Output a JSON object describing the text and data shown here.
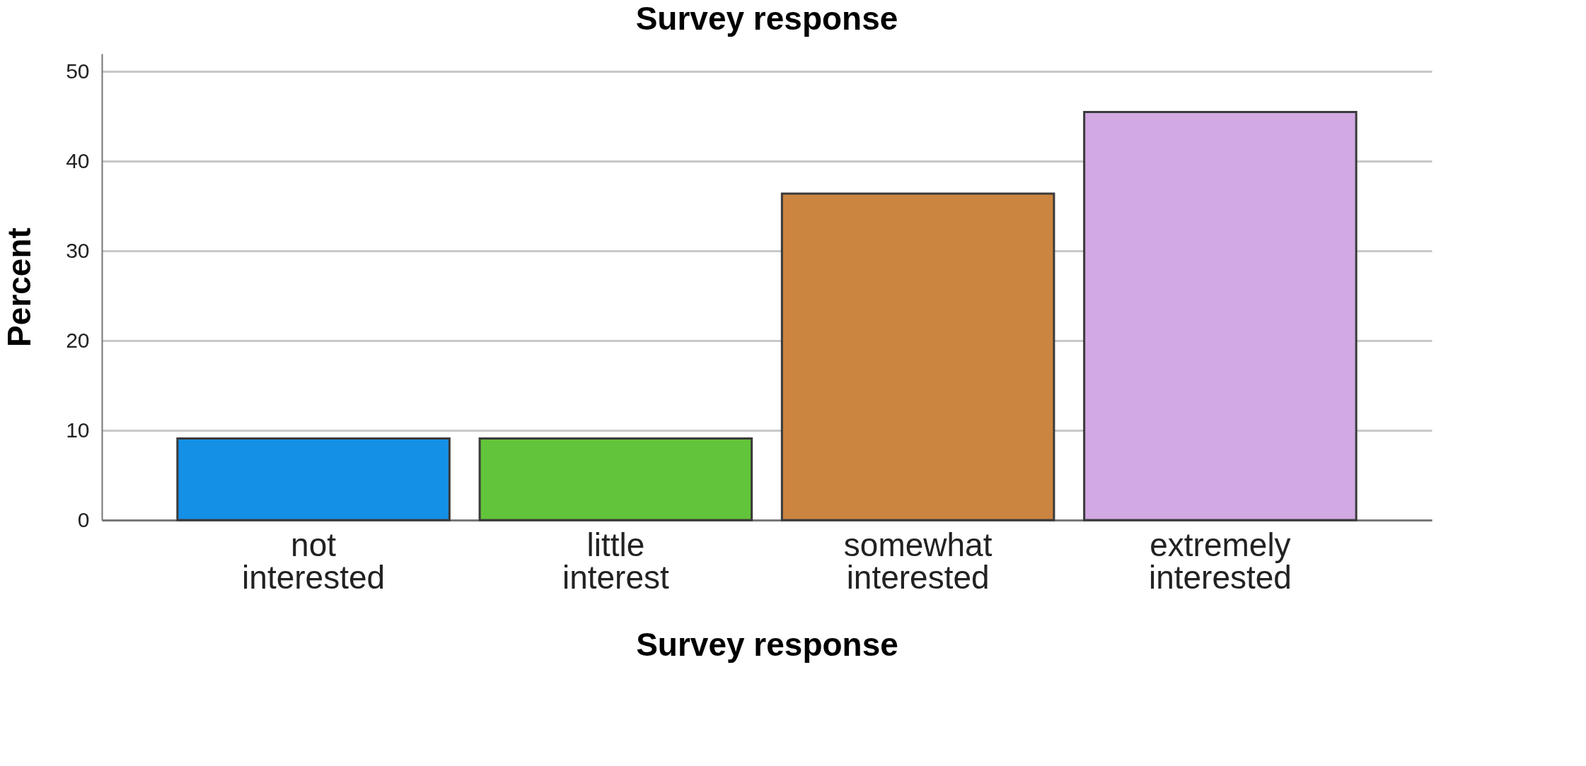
{
  "chart_data": {
    "type": "bar",
    "title": "Survey response",
    "xlabel": "Survey response",
    "ylabel": "Percent",
    "categories": [
      "not interested",
      "little interest",
      "somewhat interested",
      "extremely interested"
    ],
    "values": [
      9.1,
      9.1,
      36.4,
      45.5
    ],
    "colors": [
      "#1490e6",
      "#62c43a",
      "#cc8540",
      "#d2a9e3"
    ],
    "ylim": [
      0,
      52
    ],
    "yticks": [
      0,
      10,
      20,
      30,
      40,
      50
    ],
    "grid": "y",
    "legend": false
  }
}
